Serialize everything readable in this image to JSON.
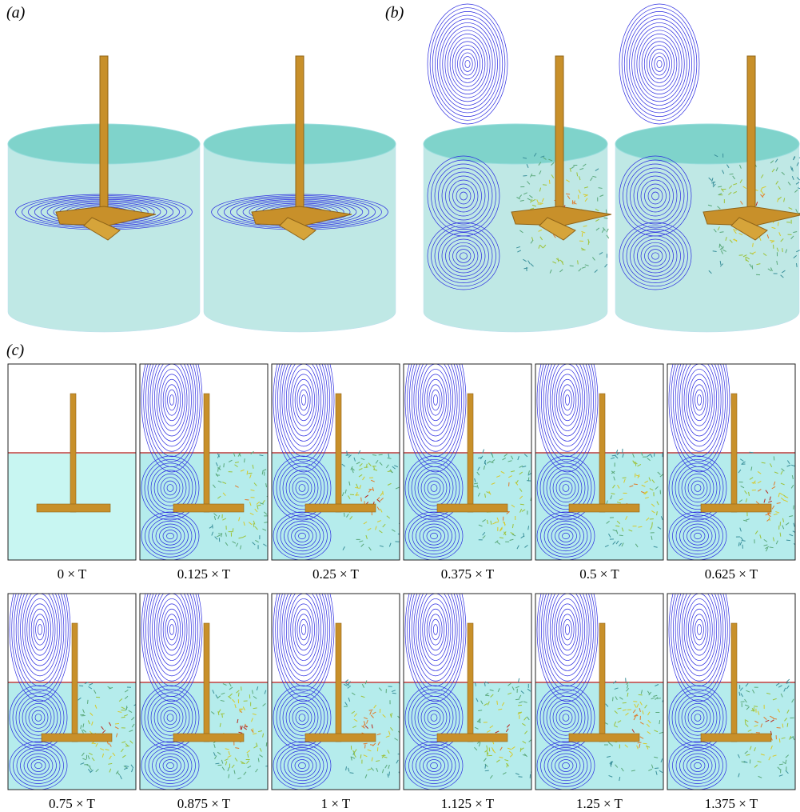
{
  "panels": {
    "a": {
      "label": "(a)"
    },
    "b": {
      "label": "(b)"
    },
    "c": {
      "label": "(c)"
    }
  },
  "captions": [
    "0 × T",
    "0.125 × T",
    "0.25 × T",
    "0.375 × T",
    "0.5 × T",
    "0.625 × T",
    "0.75 × T",
    "0.875 × T",
    "1 × T",
    "1.125 × T",
    "1.25 × T",
    "1.375 × T"
  ]
}
